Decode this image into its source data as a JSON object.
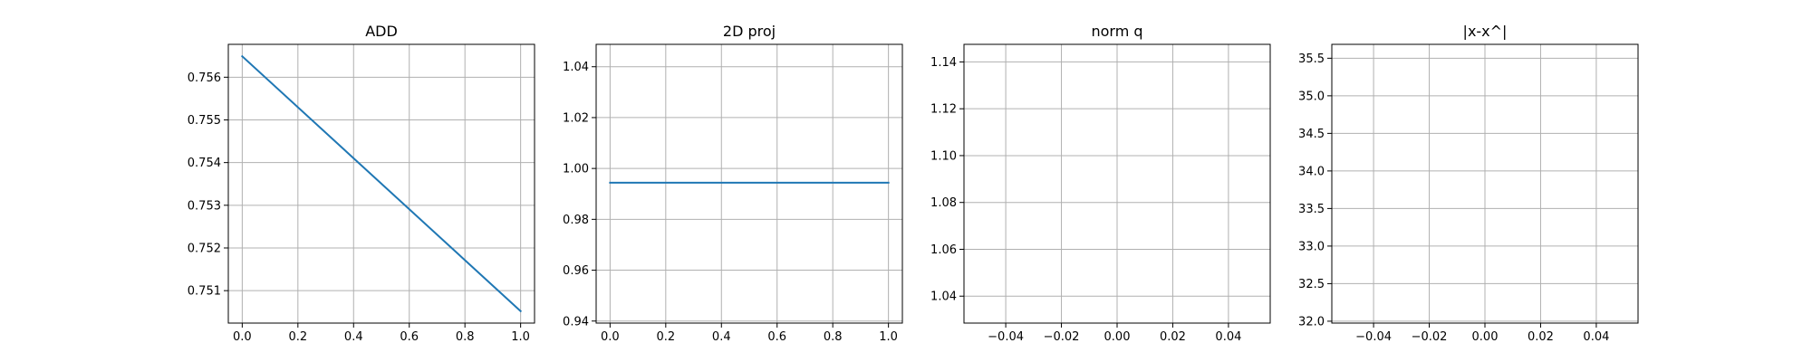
{
  "chart_data": [
    {
      "type": "line",
      "title": "ADD",
      "xlabel": "",
      "ylabel": "",
      "xlim": [
        -0.05,
        1.05
      ],
      "ylim": [
        0.75024,
        0.75677
      ],
      "grid": true,
      "x_ticks": [
        0.0,
        0.2,
        0.4,
        0.6,
        0.8,
        1.0
      ],
      "x_tick_labels": [
        "0.0",
        "0.2",
        "0.4",
        "0.6",
        "0.8",
        "1.0"
      ],
      "y_ticks": [
        0.751,
        0.752,
        0.753,
        0.754,
        0.755,
        0.756
      ],
      "y_tick_labels": [
        "0.751",
        "0.752",
        "0.753",
        "0.754",
        "0.755",
        "0.756"
      ],
      "series": [
        {
          "x": [
            0.0,
            1.0
          ],
          "y": [
            0.75649,
            0.75052
          ],
          "color": "#1f77b4"
        }
      ]
    },
    {
      "type": "line",
      "title": "2D proj",
      "xlabel": "",
      "ylabel": "",
      "xlim": [
        -0.05,
        1.05
      ],
      "ylim": [
        0.9392,
        1.0488
      ],
      "grid": true,
      "x_ticks": [
        0.0,
        0.2,
        0.4,
        0.6,
        0.8,
        1.0
      ],
      "x_tick_labels": [
        "0.0",
        "0.2",
        "0.4",
        "0.6",
        "0.8",
        "1.0"
      ],
      "y_ticks": [
        0.94,
        0.96,
        0.98,
        1.0,
        1.02,
        1.04
      ],
      "y_tick_labels": [
        "0.94",
        "0.96",
        "0.98",
        "1.00",
        "1.02",
        "1.04"
      ],
      "series": [
        {
          "x": [
            0.0,
            1.0
          ],
          "y": [
            0.9944,
            0.9944
          ],
          "color": "#1f77b4"
        }
      ]
    },
    {
      "type": "line",
      "title": "norm q",
      "xlabel": "",
      "ylabel": "",
      "xlim": [
        -0.055,
        0.055
      ],
      "ylim": [
        1.0285,
        1.1475
      ],
      "grid": true,
      "x_ticks": [
        -0.04,
        -0.02,
        0.0,
        0.02,
        0.04
      ],
      "x_tick_labels": [
        "−0.04",
        "−0.02",
        "0.00",
        "0.02",
        "0.04"
      ],
      "y_ticks": [
        1.04,
        1.06,
        1.08,
        1.1,
        1.12,
        1.14
      ],
      "y_tick_labels": [
        "1.04",
        "1.06",
        "1.08",
        "1.10",
        "1.12",
        "1.14"
      ],
      "series": []
    },
    {
      "type": "line",
      "title": "|x-x^|",
      "xlabel": "",
      "ylabel": "",
      "xlim": [
        -0.055,
        0.055
      ],
      "ylim": [
        31.975,
        35.685
      ],
      "grid": true,
      "x_ticks": [
        -0.04,
        -0.02,
        0.0,
        0.02,
        0.04
      ],
      "x_tick_labels": [
        "−0.04",
        "−0.02",
        "0.00",
        "0.02",
        "0.04"
      ],
      "y_ticks": [
        32.0,
        32.5,
        33.0,
        33.5,
        34.0,
        34.5,
        35.0,
        35.5
      ],
      "y_tick_labels": [
        "32.0",
        "32.5",
        "33.0",
        "33.5",
        "34.0",
        "34.5",
        "35.0",
        "35.5"
      ],
      "series": []
    }
  ]
}
